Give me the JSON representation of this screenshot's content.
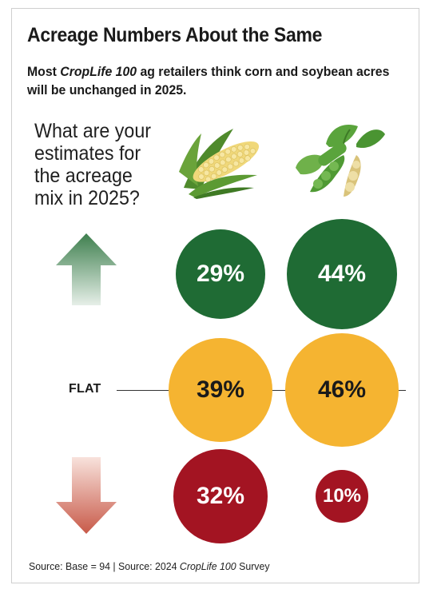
{
  "title": "Acreage Numbers About the Same",
  "subtitle": {
    "prefix": "Most ",
    "emphasis": "CropLife 100",
    "suffix": " ag retailers think corn and soybean acres will be unchanged in 2025."
  },
  "question": "What are your estimates for the acreage mix in 2025?",
  "flat_label": "FLAT",
  "source": {
    "prefix": "Source: Base = 94 | Source: 2024 ",
    "emphasis": "CropLife 100",
    "suffix": " Survey"
  },
  "icons": {
    "up": "up-arrow-icon",
    "down": "down-arrow-icon",
    "corn": "corn-icon",
    "soybean": "soybean-icon"
  },
  "colors": {
    "increase": "#1f6b34",
    "flat": "#f5b431",
    "decrease": "#a31422",
    "up_arrow": "#4f8c5f",
    "down_arrow": "#d26a5b"
  },
  "chart_data": {
    "type": "bubble",
    "columns": [
      "corn",
      "soybean"
    ],
    "rows": [
      "increase",
      "flat",
      "decrease"
    ],
    "values": {
      "corn": {
        "increase": 29,
        "flat": 39,
        "decrease": 32
      },
      "soybean": {
        "increase": 44,
        "flat": 46,
        "decrease": 10
      }
    },
    "labels": {
      "corn": {
        "increase": "29%",
        "flat": "39%",
        "decrease": "32%"
      },
      "soybean": {
        "increase": "44%",
        "flat": "46%",
        "decrease": "10%"
      }
    }
  }
}
